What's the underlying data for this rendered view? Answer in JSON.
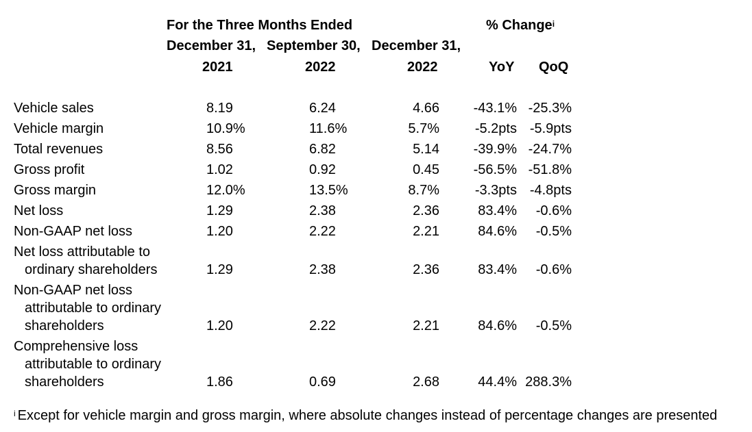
{
  "header": {
    "group_title": "For the Three Months Ended",
    "change_title": "% Change",
    "change_marker": "i",
    "dates": [
      "December 31,",
      "September 30,",
      "December 31,"
    ],
    "years": [
      "2021",
      "2022",
      "2022"
    ],
    "yoy": "YoY",
    "qoq": "QoQ"
  },
  "rows": [
    {
      "label": [
        "Vehicle sales"
      ],
      "v1": "8.19",
      "v2": "6.24",
      "v3": "4.66",
      "yoy": "-43.1%",
      "qoq": "-25.3%"
    },
    {
      "label": [
        "Vehicle margin"
      ],
      "v1": "10.9%",
      "v2": "11.6%",
      "v3": "5.7%",
      "yoy": "-5.2pts",
      "qoq": "-5.9pts"
    },
    {
      "label": [
        "Total revenues"
      ],
      "v1": "8.56",
      "v2": "6.82",
      "v3": "5.14",
      "yoy": "-39.9%",
      "qoq": "-24.7%"
    },
    {
      "label": [
        "Gross profit"
      ],
      "v1": "1.02",
      "v2": "0.92",
      "v3": "0.45",
      "yoy": "-56.5%",
      "qoq": "-51.8%"
    },
    {
      "label": [
        "Gross margin"
      ],
      "v1": "12.0%",
      "v2": "13.5%",
      "v3": "8.7%",
      "yoy": "-3.3pts",
      "qoq": "-4.8pts"
    },
    {
      "label": [
        "Net loss"
      ],
      "v1": "1.29",
      "v2": "2.38",
      "v3": "2.36",
      "yoy": "83.4%",
      "qoq": "-0.6%"
    },
    {
      "label": [
        "Non-GAAP net loss"
      ],
      "v1": "1.20",
      "v2": "2.22",
      "v3": "2.21",
      "yoy": "84.6%",
      "qoq": "-0.5%"
    },
    {
      "label": [
        "Net loss attributable to",
        "ordinary shareholders"
      ],
      "v1": "1.29",
      "v2": "2.38",
      "v3": "2.36",
      "yoy": "83.4%",
      "qoq": "-0.6%"
    },
    {
      "label": [
        "Non-GAAP net loss",
        "attributable to ordinary",
        "shareholders"
      ],
      "v1": "1.20",
      "v2": "2.22",
      "v3": "2.21",
      "yoy": "84.6%",
      "qoq": "-0.5%"
    },
    {
      "label": [
        "Comprehensive loss",
        "attributable to ordinary",
        "shareholders"
      ],
      "v1": "1.86",
      "v2": "0.69",
      "v3": "2.68",
      "yoy": "44.4%",
      "qoq": "288.3%"
    }
  ],
  "footnote": {
    "marker": "i",
    "text": "Except for vehicle margin and gross margin, where absolute changes instead of percentage changes are presented"
  }
}
